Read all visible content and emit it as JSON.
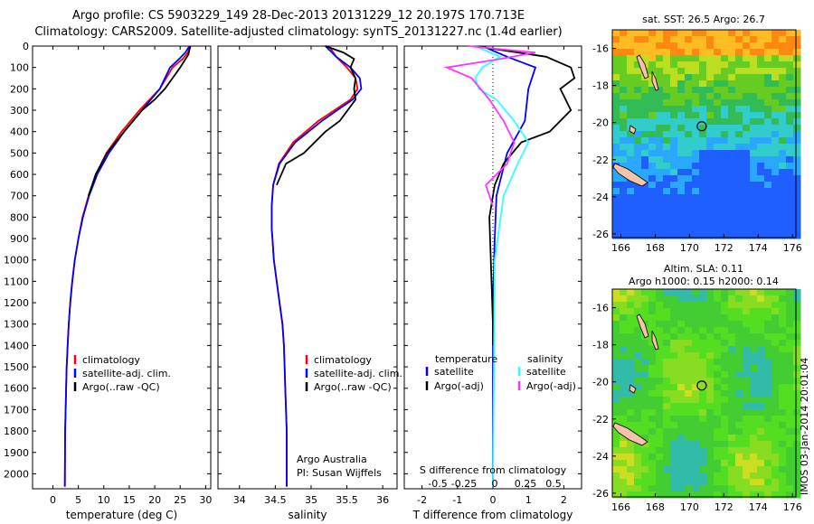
{
  "figure": {
    "title_line1": "Argo profile: CS 5903229_149 28-Dec-2013 20131229_12 20.197S 170.713E",
    "title_line2": "Climatology: CARS2009. Satellite-adjusted climatology: synTS_20131227.nc (1.4d earlier)",
    "colors": {
      "climatology": "#ff0000",
      "satellite_adj": "#0000ff",
      "argo": "#000000",
      "sat_salinity": "#33ffff",
      "argo_salinity_adj": "#ff33ff"
    }
  },
  "chart_data": [
    {
      "type": "line",
      "xlabel": "temperature (deg C)",
      "xlim": [
        -4,
        31
      ],
      "xticks": [
        0,
        5,
        10,
        15,
        20,
        25,
        30
      ],
      "ylim": [
        2070,
        0
      ],
      "yticks": [
        0,
        100,
        200,
        300,
        400,
        500,
        600,
        700,
        800,
        900,
        1000,
        1100,
        1200,
        1300,
        1400,
        1500,
        1600,
        1700,
        1800,
        1900,
        2000
      ],
      "legend": [
        "climatology",
        "satellite-adj. clim.",
        "Argo(..raw -QC)"
      ],
      "series": [
        {
          "name": "climatology",
          "color": "#ff0000",
          "x": [
            27,
            26.5,
            25.5,
            23.5,
            21,
            17,
            13.5,
            10.5,
            8.5,
            7,
            5.8,
            5,
            4.3,
            3.8,
            3.4,
            3.1,
            2.9,
            2.7,
            2.6,
            2.5,
            2.4,
            2.35
          ],
          "y": [
            0,
            30,
            60,
            100,
            200,
            300,
            400,
            500,
            600,
            700,
            800,
            900,
            1000,
            1100,
            1200,
            1300,
            1400,
            1500,
            1600,
            1700,
            1800,
            2060
          ]
        },
        {
          "name": "satellite-adj. clim.",
          "color": "#0000ff",
          "x": [
            26.8,
            26,
            24.8,
            23,
            21,
            17.5,
            14,
            11,
            8.7,
            7.1,
            5.9,
            5,
            4.3,
            3.8,
            3.4,
            3.1,
            2.9,
            2.7,
            2.6,
            2.5,
            2.4,
            2.35
          ],
          "y": [
            0,
            30,
            60,
            100,
            200,
            300,
            400,
            500,
            600,
            700,
            800,
            900,
            1000,
            1100,
            1200,
            1300,
            1400,
            1500,
            1600,
            1700,
            1800,
            2060
          ]
        },
        {
          "name": "Argo(..raw -QC)",
          "color": "#000000",
          "x": [
            27,
            26.6,
            25,
            23.5,
            22,
            20,
            17.5,
            14,
            10.6,
            8.4,
            7
          ],
          "y": [
            0,
            40,
            100,
            150,
            200,
            250,
            300,
            400,
            500,
            600,
            700
          ]
        }
      ]
    },
    {
      "type": "line",
      "xlabel": "salinity",
      "xlim": [
        33.7,
        36.2
      ],
      "xticks": [
        34,
        34.5,
        35,
        35.5,
        36
      ],
      "ylim": [
        2070,
        0
      ],
      "legend": [
        "climatology",
        "satellite-adj. clim.",
        "Argo(..raw -QC)"
      ],
      "annotation": [
        "Argo Australia",
        "PI: Susan Wijffels"
      ],
      "series": [
        {
          "name": "climatology",
          "color": "#ff0000",
          "x": [
            35.25,
            35.35,
            35.5,
            35.62,
            35.65,
            35.55,
            35.1,
            34.75,
            34.55,
            34.47,
            34.45,
            34.45,
            34.48,
            34.52,
            34.56,
            34.6,
            34.62,
            34.63,
            34.64,
            34.65,
            34.66,
            34.66
          ],
          "y": [
            0,
            50,
            100,
            150,
            200,
            250,
            350,
            450,
            550,
            650,
            750,
            850,
            1000,
            1100,
            1200,
            1300,
            1400,
            1500,
            1600,
            1700,
            1800,
            2060
          ]
        },
        {
          "name": "satellite-adj. clim.",
          "color": "#0000ff",
          "x": [
            35.2,
            35.35,
            35.55,
            35.68,
            35.7,
            35.58,
            35.15,
            34.78,
            34.56,
            34.47,
            34.45,
            34.45,
            34.48,
            34.52,
            34.56,
            34.6,
            34.62,
            34.63,
            34.64,
            34.65,
            34.66,
            34.66
          ],
          "y": [
            0,
            50,
            100,
            150,
            200,
            250,
            350,
            450,
            550,
            650,
            750,
            850,
            1000,
            1100,
            1200,
            1300,
            1400,
            1500,
            1600,
            1700,
            1800,
            2060
          ]
        },
        {
          "name": "Argo(..raw -QC)",
          "color": "#000000",
          "x": [
            35.2,
            35.45,
            35.6,
            35.55,
            35.62,
            35.6,
            35.62,
            35.4,
            35.2,
            34.9,
            34.65,
            34.52
          ],
          "y": [
            0,
            30,
            60,
            100,
            150,
            200,
            250,
            350,
            400,
            500,
            550,
            650
          ]
        }
      ]
    },
    {
      "type": "line",
      "xlabel": "T difference from climatology",
      "xlabel_top": "S difference from climatology",
      "xlim": [
        -2.5,
        2.5
      ],
      "xticks": [
        -2,
        -1,
        0,
        1,
        2
      ],
      "xticks_top": [
        "-0.5",
        "-0.25",
        "0",
        "0.25",
        "0.5"
      ],
      "ylim": [
        2070,
        0
      ],
      "legend_temperature_title": "temperature",
      "legend_salinity_title": "salinity",
      "legend": [
        "satellite",
        "Argo(-adj)",
        "satellite",
        "Argo(-adj)"
      ],
      "series": [
        {
          "name": "temperature satellite",
          "color": "#0000ff",
          "x": [
            -0.3,
            0.4,
            1.2,
            1.0,
            0.9,
            0.4,
            0.1,
            0.05,
            0,
            0,
            0,
            0
          ],
          "y": [
            0,
            50,
            100,
            200,
            350,
            500,
            700,
            900,
            1200,
            1500,
            1800,
            2060
          ]
        },
        {
          "name": "temperature Argo(-adj)",
          "color": "#000000",
          "x": [
            -0.5,
            1.5,
            2.2,
            2.3,
            1.9,
            2.2,
            1.6,
            0.8,
            0.3,
            0.05,
            -0.1,
            0,
            0
          ],
          "y": [
            0,
            50,
            100,
            150,
            200,
            300,
            400,
            450,
            550,
            650,
            800,
            1300,
            1400
          ]
        },
        {
          "name": "salinity satellite",
          "color": "#33ffff",
          "x": [
            -0.5,
            0.2,
            -0.3,
            -0.5,
            -0.4,
            0.1,
            0.6,
            1.0,
            0.7,
            0.3,
            0.05,
            0
          ],
          "y": [
            0,
            50,
            100,
            150,
            200,
            250,
            350,
            450,
            550,
            700,
            1000,
            2060
          ]
        },
        {
          "name": "salinity Argo(-adj)",
          "color": "#ff33ff",
          "x": [
            -0.7,
            1.2,
            0.2,
            -1.3,
            -0.6,
            -0.1,
            0.3,
            0.6,
            0.4,
            -0.2,
            0
          ],
          "y": [
            0,
            30,
            60,
            100,
            150,
            250,
            350,
            450,
            550,
            650,
            750
          ]
        }
      ]
    },
    {
      "type": "heatmap",
      "title": "sat. SST: 26.5 Argo: 26.7",
      "xticks": [
        166,
        168,
        170,
        172,
        174,
        176
      ],
      "yticks": [
        -16,
        -18,
        -20,
        -22,
        -24,
        -26
      ],
      "argo_position": [
        170.713,
        -20.197
      ]
    },
    {
      "type": "heatmap",
      "title_line1": "Altim. SLA: 0.11",
      "title_line2": "Argo h1000: 0.15 h2000: 0.14",
      "xticks": [
        166,
        168,
        170,
        172,
        174,
        176
      ],
      "yticks": [
        -16,
        -18,
        -20,
        -22,
        -24,
        -26
      ],
      "argo_position": [
        170.713,
        -20.197
      ],
      "side_label": "IMOS 03-Jan-2014 20:01:04"
    }
  ]
}
